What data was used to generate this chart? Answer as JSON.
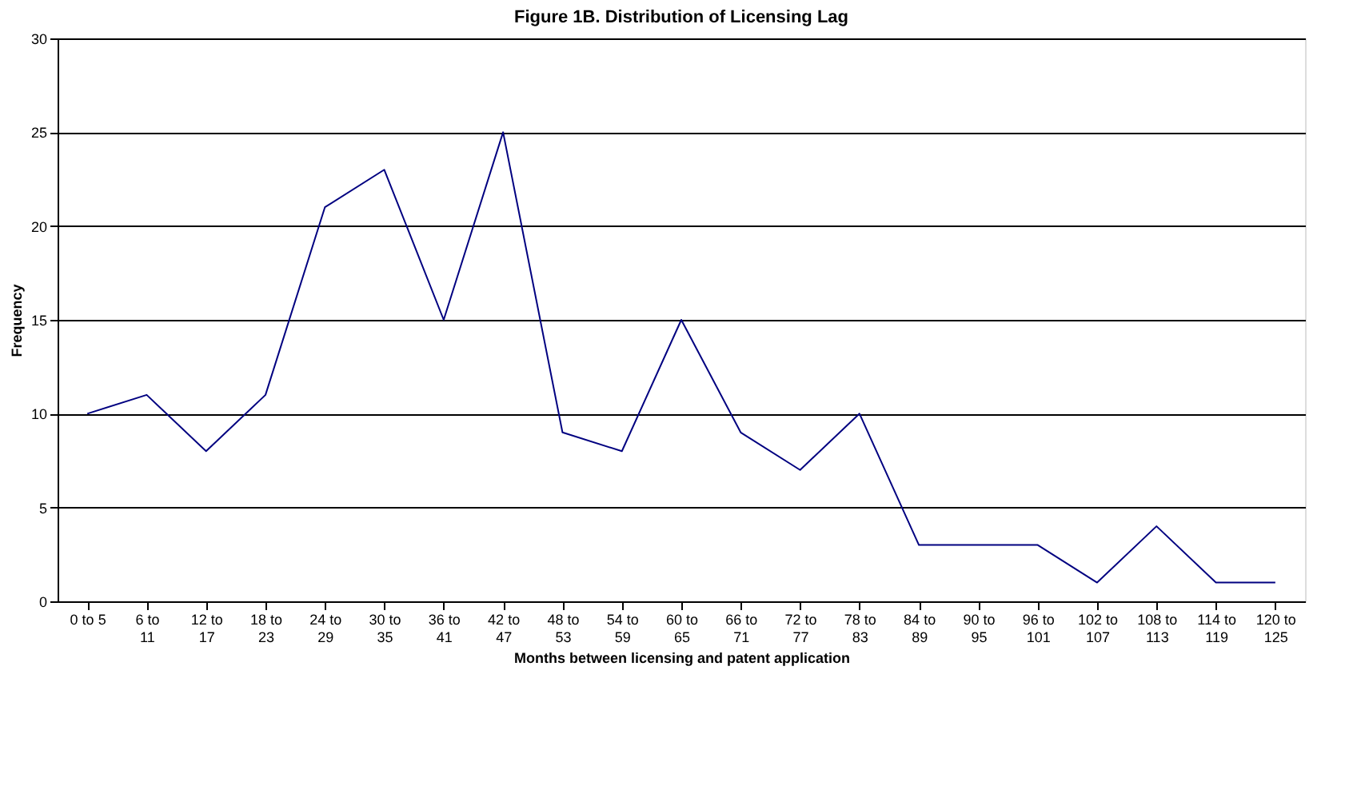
{
  "chart_data": {
    "type": "line",
    "title": "Figure 1B. Distribution of Licensing Lag",
    "xlabel": "Months between licensing and patent application",
    "ylabel": "Frequency",
    "categories": [
      "0 to 5",
      "6 to 11",
      "12 to 17",
      "18 to 23",
      "24 to 29",
      "30 to 35",
      "36 to 41",
      "42 to 47",
      "48 to 53",
      "54 to 59",
      "60 to 65",
      "66 to 71",
      "72 to 77",
      "78 to 83",
      "84 to 89",
      "90 to 95",
      "96 to 101",
      "102 to 107",
      "108 to 113",
      "114 to 119",
      "120 to 125"
    ],
    "series": [
      {
        "color": "#000080",
        "values": [
          10,
          11,
          8,
          11,
          21,
          23,
          15,
          25,
          9,
          8,
          15,
          9,
          7,
          10,
          3,
          3,
          3,
          1,
          4,
          1,
          1
        ]
      }
    ],
    "ylim": [
      0,
      30
    ],
    "yticks": [
      0,
      5,
      10,
      15,
      20,
      25,
      30
    ],
    "grid": "y",
    "marker": "none",
    "line_style": "solid"
  }
}
